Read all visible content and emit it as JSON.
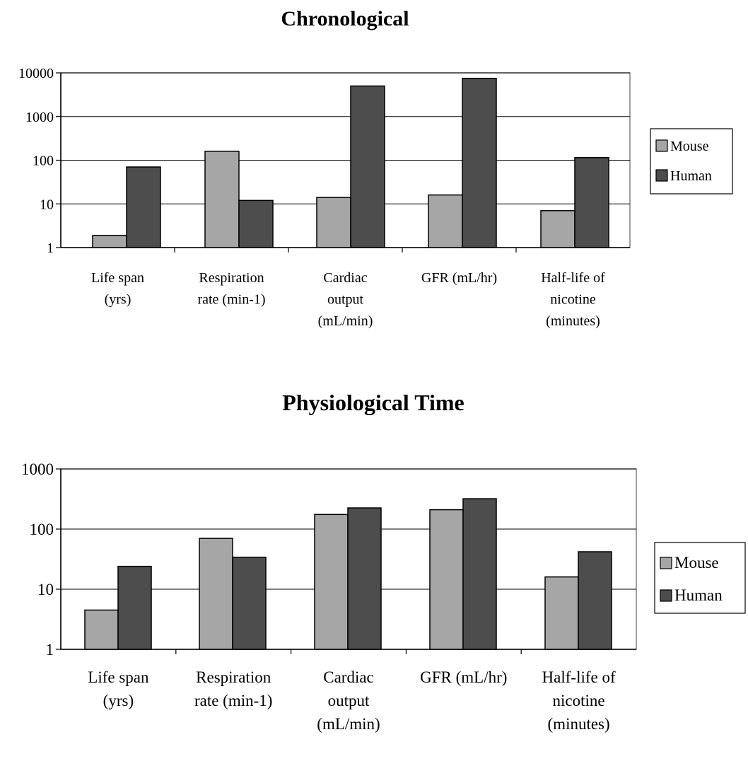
{
  "chart_data": [
    {
      "type": "bar",
      "title": "Chronological",
      "xlabel": "",
      "ylabel": "",
      "y_scale": "log",
      "ylim": [
        1,
        10000
      ],
      "yticks": [
        "1",
        "10",
        "100",
        "1000",
        "10000"
      ],
      "grid": true,
      "legend_position": "right",
      "categories": [
        [
          "Life span",
          "(yrs)"
        ],
        [
          "Respiration",
          "rate (min-1)"
        ],
        [
          "Cardiac",
          "output",
          "(mL/min)"
        ],
        [
          "GFR (mL/hr)"
        ],
        [
          "Half-life of",
          "nicotine",
          "(minutes)"
        ]
      ],
      "series": [
        {
          "name": "Mouse",
          "color": "#a6a6a6",
          "values": [
            1.9,
            160,
            14,
            16,
            7
          ]
        },
        {
          "name": "Human",
          "color": "#4d4d4d",
          "values": [
            70,
            12,
            5000,
            7500,
            115
          ]
        }
      ]
    },
    {
      "type": "bar",
      "title": "Physiological Time",
      "xlabel": "",
      "ylabel": "",
      "y_scale": "log",
      "ylim": [
        1,
        1000
      ],
      "yticks": [
        "1",
        "10",
        "100",
        "1000"
      ],
      "grid": true,
      "legend_position": "right",
      "categories": [
        [
          "Life span",
          "(yrs)"
        ],
        [
          "Respiration",
          "rate (min-1)"
        ],
        [
          "Cardiac",
          "output",
          "(mL/min)"
        ],
        [
          "GFR (mL/hr)"
        ],
        [
          "Half-life of",
          "nicotine",
          "(minutes)"
        ]
      ],
      "series": [
        {
          "name": "Mouse",
          "color": "#a6a6a6",
          "values": [
            4.5,
            70,
            175,
            210,
            16
          ]
        },
        {
          "name": "Human",
          "color": "#4d4d4d",
          "values": [
            24,
            34,
            225,
            320,
            42
          ]
        }
      ]
    }
  ]
}
